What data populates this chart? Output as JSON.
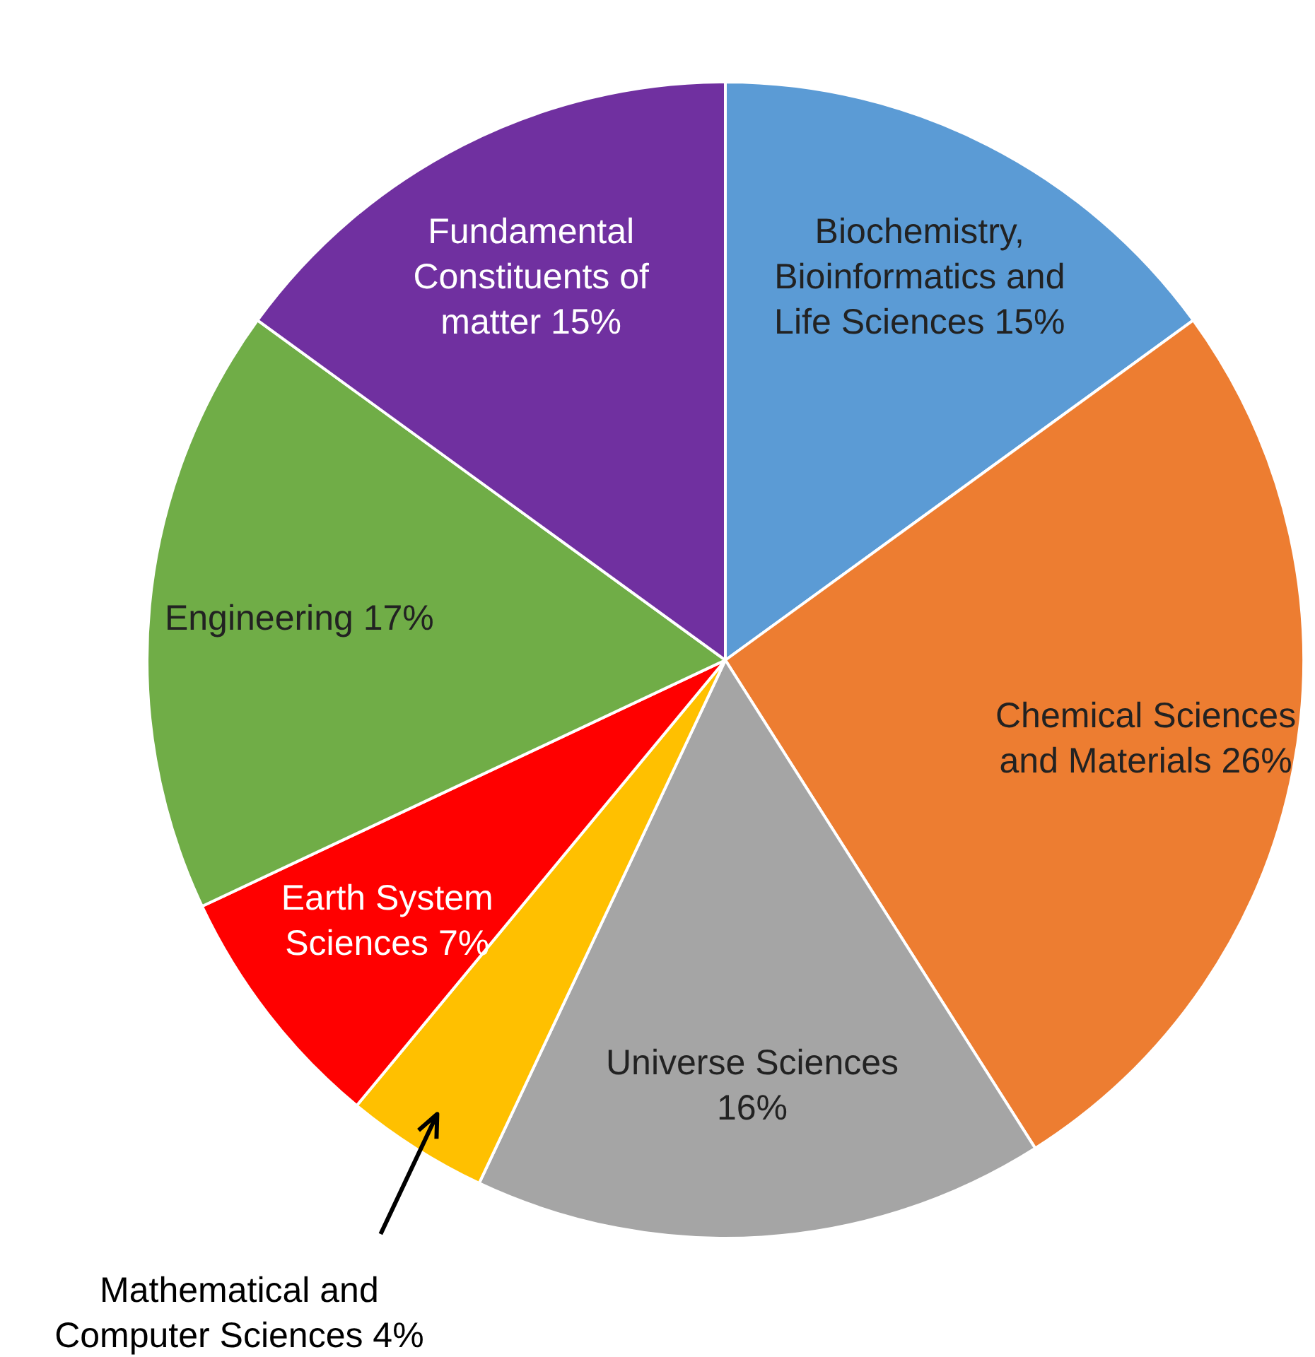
{
  "chart_data": {
    "type": "pie",
    "categories": [
      "Biochemistry, Bioinformatics and Life Sciences",
      "Chemical Sciences and Materials",
      "Universe Sciences",
      "Mathematical and Computer Sciences",
      "Earth System Sciences",
      "Engineering",
      "Fundamental Constituents of matter"
    ],
    "values": [
      15,
      26,
      16,
      4,
      7,
      17,
      15
    ],
    "value_labels": [
      "15%",
      "26%",
      "16%",
      "4%",
      "7%",
      "17%",
      "15%"
    ],
    "colors": [
      "#5b9bd5",
      "#ed7d31",
      "#a5a5a5",
      "#ffc000",
      "#ff0000",
      "#70ad47",
      "#7030a0"
    ],
    "legend": false
  }
}
